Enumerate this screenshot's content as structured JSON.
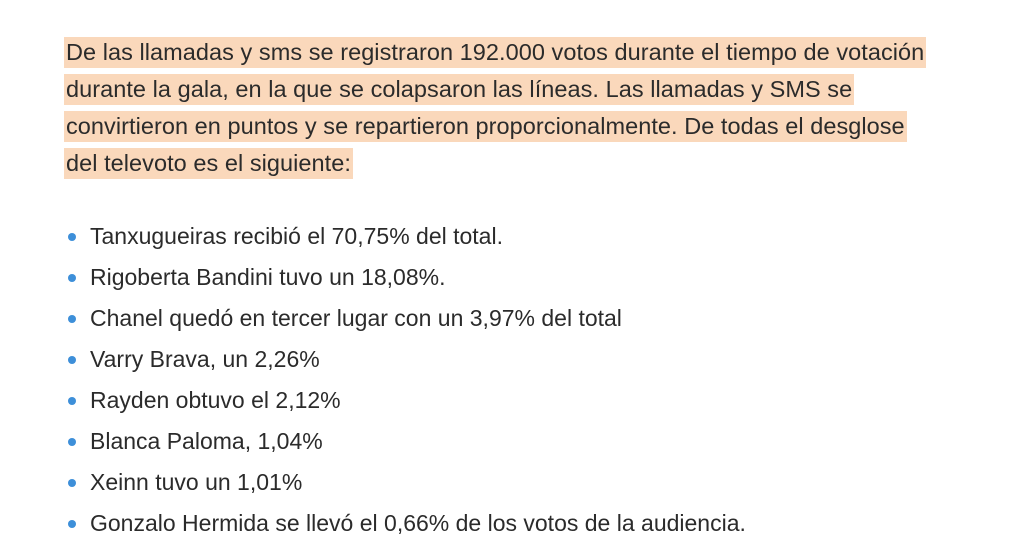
{
  "intro": {
    "lines": [
      "De las llamadas y sms se registraron 192.000 votos durante el tiempo de votación",
      "durante la gala, en la que se colapsaron las líneas. Las llamadas y SMS se",
      "convirtieron en puntos y se repartieron proporcionalmente. De todas el desglose",
      "del televoto es el siguiente:"
    ],
    "highlight_color": "#fad8bb"
  },
  "results": {
    "bullet_color": "#3d8fd9",
    "items": [
      "Tanxugueiras recibió el 70,75% del total.",
      "Rigoberta Bandini tuvo un 18,08%.",
      "Chanel quedó en tercer lugar con un 3,97% del total",
      "Varry Brava, un 2,26%",
      "Rayden obtuvo el 2,12%",
      "Blanca Paloma, 1,04%",
      "Xeinn tuvo un 1,01%",
      "Gonzalo Hermida se llevó el 0,66% de los votos de la audiencia."
    ]
  }
}
